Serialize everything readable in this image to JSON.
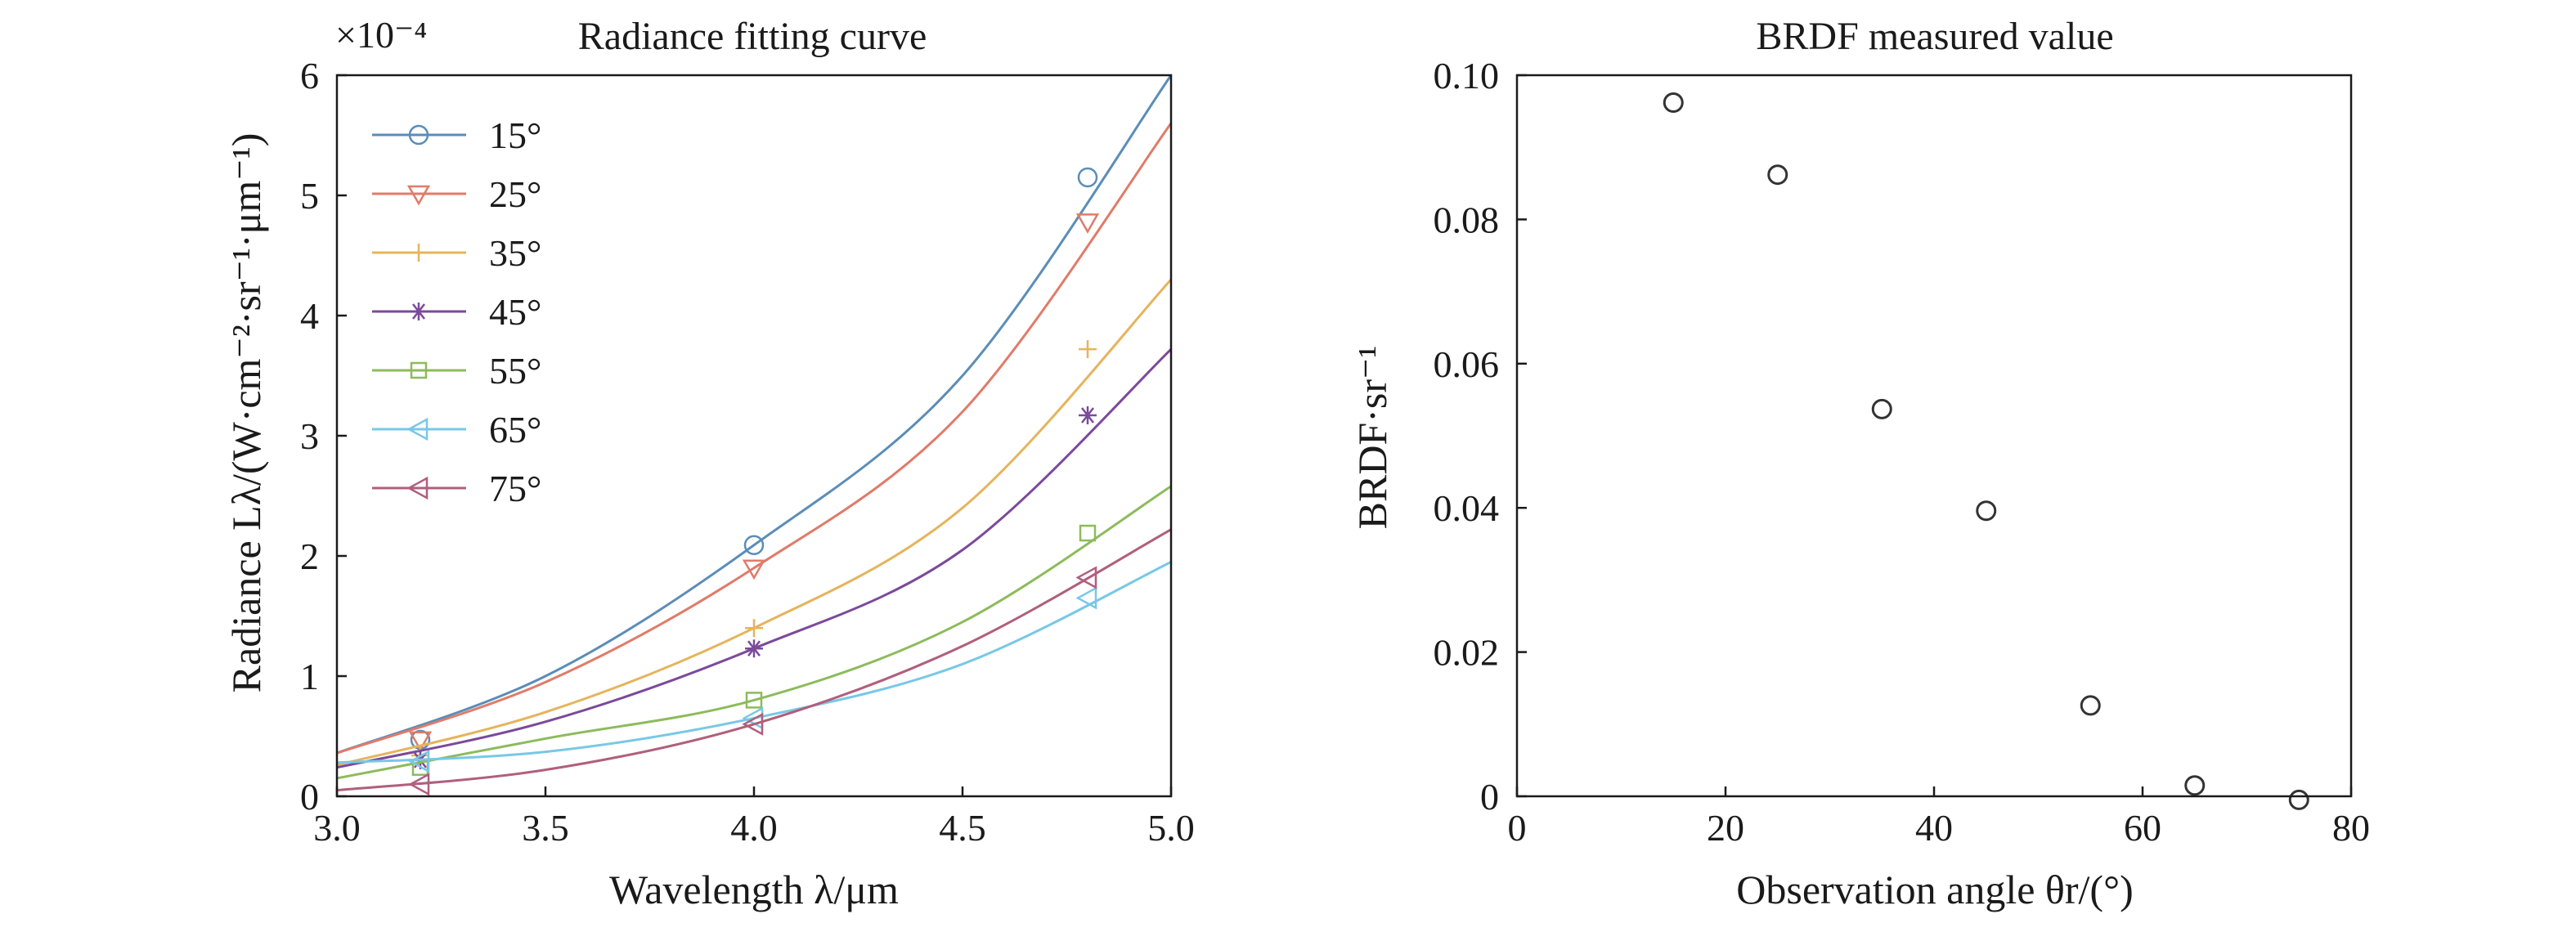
{
  "chart_data": [
    {
      "type": "line",
      "title": "Radiance fitting curve",
      "xlabel": "Wavelength λ/μm",
      "ylabel": "Radiance Lλ/(W·cm⁻²·sr⁻¹·μm⁻¹)",
      "scale_label": "×10⁻⁴",
      "xlim": [
        3.0,
        5.0
      ],
      "ylim": [
        0,
        6
      ],
      "xticks": [
        "3.0",
        "3.5",
        "4.0",
        "4.5",
        "5.0"
      ],
      "yticks": [
        "0",
        "1",
        "2",
        "3",
        "4",
        "5",
        "6"
      ],
      "legend_position": "top-left",
      "marker_x": [
        3.2,
        4.0,
        4.8
      ],
      "series": [
        {
          "name": "15°",
          "color": "#5b8db8",
          "marker": "circle",
          "curve": [
            0.36,
            1.0,
            2.09,
            3.5,
            6.0
          ],
          "points": [
            0.47,
            2.09,
            5.15
          ]
        },
        {
          "name": "25°",
          "color": "#e07b6a",
          "marker": "triangle-down",
          "curve": [
            0.36,
            0.95,
            1.9,
            3.2,
            5.6
          ],
          "points": [
            0.47,
            1.9,
            4.78
          ]
        },
        {
          "name": "35°",
          "color": "#e5b45c",
          "marker": "plus",
          "curve": [
            0.26,
            0.7,
            1.4,
            2.4,
            4.3
          ],
          "points": [
            0.34,
            1.4,
            3.72
          ]
        },
        {
          "name": "45°",
          "color": "#7b4a9a",
          "marker": "asterisk",
          "curve": [
            0.24,
            0.62,
            1.23,
            2.05,
            3.72
          ],
          "points": [
            0.3,
            1.23,
            3.17
          ]
        },
        {
          "name": "55°",
          "color": "#8dbb5b",
          "marker": "square",
          "curve": [
            0.15,
            0.48,
            0.8,
            1.45,
            2.58
          ],
          "points": [
            0.24,
            0.8,
            2.19
          ]
        },
        {
          "name": "65°",
          "color": "#78c8e6",
          "marker": "triangle-left",
          "curve": [
            0.28,
            0.37,
            0.65,
            1.1,
            1.95
          ],
          "points": [
            0.29,
            0.65,
            1.65
          ]
        },
        {
          "name": "75°",
          "color": "#b05f7c",
          "marker": "triangle-left",
          "curve": [
            0.05,
            0.22,
            0.6,
            1.25,
            2.22
          ],
          "points": [
            0.1,
            0.6,
            1.82
          ]
        }
      ]
    },
    {
      "type": "scatter",
      "title": "BRDF measured value",
      "xlabel": "Observation angle θr/(°)",
      "ylabel": "BRDF·sr⁻¹",
      "xlim": [
        0,
        80
      ],
      "ylim": [
        0,
        0.1
      ],
      "xticks": [
        "0",
        "20",
        "40",
        "60",
        "80"
      ],
      "yticks": [
        "0",
        "0.02",
        "0.04",
        "0.06",
        "0.08",
        "0.10"
      ],
      "x": [
        15,
        25,
        35,
        45,
        55,
        65,
        75
      ],
      "y": [
        0.0962,
        0.0862,
        0.0537,
        0.0396,
        0.0126,
        0.0015,
        -0.0005
      ]
    }
  ]
}
